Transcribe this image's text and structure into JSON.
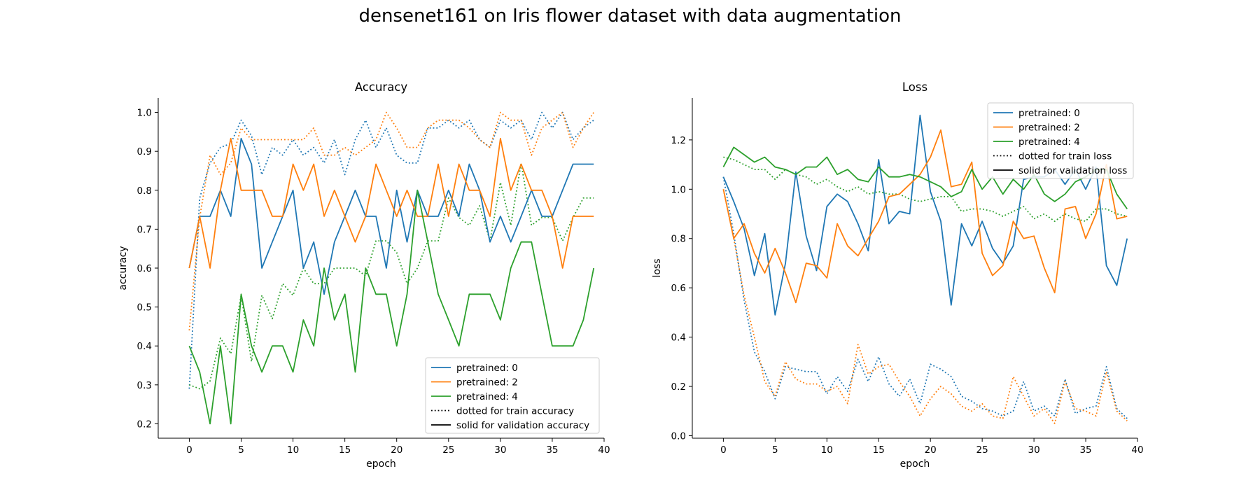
{
  "figure": {
    "title": "densenet161 on Iris flower dataset with data augmentation"
  },
  "colors": {
    "pretrained_0": "#1f77b4",
    "pretrained_2": "#ff7f0e",
    "pretrained_4": "#2ca02c",
    "axis": "#000000"
  },
  "chart_data": [
    {
      "type": "line",
      "title": "Accuracy",
      "xlabel": "epoch",
      "ylabel": "accuracy",
      "xlim": [
        -3,
        40
      ],
      "ylim": [
        0.163,
        1.037
      ],
      "xticks": [
        0,
        5,
        10,
        15,
        20,
        25,
        30,
        35,
        40
      ],
      "yticks": [
        0.2,
        0.3,
        0.4,
        0.5,
        0.6,
        0.7,
        0.8,
        0.9,
        1.0
      ],
      "ytick_labels": [
        "0.2",
        "0.3",
        "0.4",
        "0.5",
        "0.6",
        "0.7",
        "0.8",
        "0.9",
        "1.0"
      ],
      "legend_position": "lower-right",
      "legend": [
        {
          "label": "pretrained: 0",
          "color": "#1f77b4",
          "style": "solid"
        },
        {
          "label": "pretrained: 2",
          "color": "#ff7f0e",
          "style": "solid"
        },
        {
          "label": "pretrained: 4",
          "color": "#2ca02c",
          "style": "solid"
        },
        {
          "label": "dotted for train accuracy",
          "color": "#000000",
          "style": "dotted"
        },
        {
          "label": "solid for validation accuracy",
          "color": "#000000",
          "style": "solid"
        }
      ],
      "series": [
        {
          "pretrained": 0,
          "kind": "train",
          "color": "#1f77b4",
          "style": "dotted",
          "values": [
            0.29,
            0.78,
            0.87,
            0.91,
            0.92,
            0.98,
            0.94,
            0.84,
            0.91,
            0.89,
            0.93,
            0.89,
            0.91,
            0.87,
            0.93,
            0.84,
            0.93,
            0.98,
            0.91,
            0.96,
            0.89,
            0.87,
            0.87,
            0.96,
            0.96,
            0.98,
            0.96,
            0.98,
            0.93,
            0.91,
            0.98,
            0.96,
            0.98,
            0.93,
            1.0,
            0.96,
            1.0,
            0.93,
            0.96,
            0.98
          ]
        },
        {
          "pretrained": 2,
          "kind": "train",
          "color": "#ff7f0e",
          "style": "dotted",
          "values": [
            0.44,
            0.73,
            0.89,
            0.84,
            0.87,
            0.96,
            0.93,
            0.93,
            0.93,
            0.93,
            0.93,
            0.93,
            0.96,
            0.89,
            0.89,
            0.91,
            0.89,
            0.91,
            0.93,
            1.0,
            0.96,
            0.91,
            0.91,
            0.96,
            0.98,
            0.98,
            0.98,
            0.96,
            0.93,
            0.91,
            1.0,
            0.98,
            0.98,
            0.89,
            0.96,
            0.98,
            1.0,
            0.91,
            0.96,
            1.0
          ]
        },
        {
          "pretrained": 4,
          "kind": "train",
          "color": "#2ca02c",
          "style": "dotted",
          "values": [
            0.3,
            0.29,
            0.31,
            0.42,
            0.38,
            0.53,
            0.36,
            0.53,
            0.47,
            0.56,
            0.53,
            0.6,
            0.56,
            0.56,
            0.6,
            0.6,
            0.6,
            0.58,
            0.67,
            0.67,
            0.64,
            0.56,
            0.6,
            0.67,
            0.67,
            0.78,
            0.73,
            0.71,
            0.76,
            0.67,
            0.82,
            0.71,
            0.87,
            0.71,
            0.73,
            0.73,
            0.67,
            0.73,
            0.78,
            0.78
          ]
        },
        {
          "pretrained": 0,
          "kind": "validation",
          "color": "#1f77b4",
          "style": "solid",
          "values": [
            0.6,
            0.733,
            0.733,
            0.8,
            0.733,
            0.933,
            0.867,
            0.6,
            0.667,
            0.733,
            0.8,
            0.6,
            0.667,
            0.533,
            0.667,
            0.733,
            0.8,
            0.733,
            0.733,
            0.6,
            0.8,
            0.667,
            0.8,
            0.733,
            0.733,
            0.8,
            0.733,
            0.867,
            0.8,
            0.667,
            0.733,
            0.667,
            0.733,
            0.8,
            0.733,
            0.733,
            0.8,
            0.867,
            0.867,
            0.867
          ]
        },
        {
          "pretrained": 2,
          "kind": "validation",
          "color": "#ff7f0e",
          "style": "solid",
          "values": [
            0.6,
            0.733,
            0.6,
            0.8,
            0.933,
            0.8,
            0.8,
            0.8,
            0.733,
            0.733,
            0.867,
            0.8,
            0.867,
            0.733,
            0.8,
            0.733,
            0.667,
            0.733,
            0.867,
            0.8,
            0.733,
            0.8,
            0.733,
            0.733,
            0.867,
            0.733,
            0.867,
            0.8,
            0.8,
            0.733,
            0.933,
            0.8,
            0.867,
            0.8,
            0.8,
            0.733,
            0.6,
            0.733,
            0.733,
            0.733
          ]
        },
        {
          "pretrained": 4,
          "kind": "validation",
          "color": "#2ca02c",
          "style": "solid",
          "values": [
            0.4,
            0.333,
            0.2,
            0.4,
            0.2,
            0.533,
            0.4,
            0.333,
            0.4,
            0.4,
            0.333,
            0.467,
            0.4,
            0.6,
            0.467,
            0.533,
            0.333,
            0.6,
            0.533,
            0.533,
            0.4,
            0.533,
            0.8,
            0.667,
            0.533,
            0.467,
            0.4,
            0.533,
            0.533,
            0.533,
            0.467,
            0.6,
            0.667,
            0.667,
            0.533,
            0.4,
            0.4,
            0.4,
            0.467,
            0.6
          ]
        }
      ]
    },
    {
      "type": "line",
      "title": "Loss",
      "xlabel": "epoch",
      "ylabel": "loss",
      "xlim": [
        -3,
        40
      ],
      "ylim": [
        -0.01,
        1.37
      ],
      "xticks": [
        0,
        5,
        10,
        15,
        20,
        25,
        30,
        35,
        40
      ],
      "yticks": [
        0.0,
        0.2,
        0.4,
        0.6,
        0.8,
        1.0,
        1.2
      ],
      "ytick_labels": [
        "0.0",
        "0.2",
        "0.4",
        "0.6",
        "0.8",
        "1.0",
        "1.2"
      ],
      "legend_position": "upper-right",
      "legend": [
        {
          "label": "pretrained: 0",
          "color": "#1f77b4",
          "style": "solid"
        },
        {
          "label": "pretrained: 2",
          "color": "#ff7f0e",
          "style": "solid"
        },
        {
          "label": "pretrained: 4",
          "color": "#2ca02c",
          "style": "solid"
        },
        {
          "label": "dotted for train loss",
          "color": "#000000",
          "style": "dotted"
        },
        {
          "label": "solid for validation loss",
          "color": "#000000",
          "style": "solid"
        }
      ],
      "series": [
        {
          "pretrained": 0,
          "kind": "train",
          "color": "#1f77b4",
          "style": "dotted",
          "values": [
            1.05,
            0.82,
            0.55,
            0.34,
            0.26,
            0.15,
            0.28,
            0.27,
            0.26,
            0.26,
            0.17,
            0.24,
            0.18,
            0.31,
            0.22,
            0.32,
            0.21,
            0.16,
            0.23,
            0.13,
            0.29,
            0.27,
            0.24,
            0.16,
            0.14,
            0.11,
            0.1,
            0.08,
            0.1,
            0.22,
            0.1,
            0.12,
            0.08,
            0.23,
            0.09,
            0.11,
            0.12,
            0.28,
            0.11,
            0.07
          ]
        },
        {
          "pretrained": 2,
          "kind": "train",
          "color": "#ff7f0e",
          "style": "dotted",
          "values": [
            1.0,
            0.8,
            0.57,
            0.4,
            0.22,
            0.16,
            0.3,
            0.23,
            0.21,
            0.21,
            0.18,
            0.2,
            0.13,
            0.37,
            0.25,
            0.28,
            0.29,
            0.22,
            0.16,
            0.08,
            0.15,
            0.2,
            0.17,
            0.12,
            0.1,
            0.13,
            0.08,
            0.07,
            0.24,
            0.16,
            0.08,
            0.11,
            0.05,
            0.22,
            0.11,
            0.1,
            0.08,
            0.26,
            0.1,
            0.06
          ]
        },
        {
          "pretrained": 4,
          "kind": "train",
          "color": "#2ca02c",
          "style": "dotted",
          "values": [
            1.13,
            1.12,
            1.1,
            1.08,
            1.08,
            1.04,
            1.08,
            1.06,
            1.05,
            1.02,
            1.04,
            1.01,
            0.99,
            1.01,
            0.98,
            0.99,
            0.98,
            0.98,
            0.96,
            0.95,
            0.96,
            0.97,
            0.97,
            0.91,
            0.92,
            0.92,
            0.91,
            0.89,
            0.91,
            0.93,
            0.88,
            0.9,
            0.87,
            0.9,
            0.88,
            0.87,
            0.92,
            0.92,
            0.9,
            0.89
          ]
        },
        {
          "pretrained": 0,
          "kind": "validation",
          "color": "#1f77b4",
          "style": "solid",
          "values": [
            1.05,
            0.95,
            0.84,
            0.65,
            0.82,
            0.49,
            0.7,
            1.07,
            0.81,
            0.67,
            0.93,
            0.98,
            0.95,
            0.86,
            0.75,
            1.12,
            0.86,
            0.91,
            0.9,
            1.3,
            0.99,
            0.87,
            0.53,
            0.86,
            0.77,
            0.87,
            0.76,
            0.7,
            0.77,
            1.04,
            1.05,
            1.05,
            1.08,
            1.02,
            1.08,
            1.0,
            1.09,
            0.69,
            0.61,
            0.8
          ]
        },
        {
          "pretrained": 2,
          "kind": "validation",
          "color": "#ff7f0e",
          "style": "solid",
          "values": [
            1.0,
            0.8,
            0.86,
            0.74,
            0.66,
            0.76,
            0.66,
            0.54,
            0.7,
            0.69,
            0.64,
            0.86,
            0.77,
            0.73,
            0.8,
            0.87,
            0.97,
            0.98,
            1.02,
            1.06,
            1.13,
            1.24,
            1.01,
            1.02,
            1.11,
            0.74,
            0.65,
            0.69,
            0.87,
            0.8,
            0.81,
            0.68,
            0.58,
            0.92,
            0.93,
            0.8,
            0.9,
            1.1,
            0.88,
            0.89
          ]
        },
        {
          "pretrained": 4,
          "kind": "validation",
          "color": "#2ca02c",
          "style": "solid",
          "values": [
            1.09,
            1.17,
            1.14,
            1.11,
            1.13,
            1.09,
            1.08,
            1.06,
            1.09,
            1.09,
            1.13,
            1.06,
            1.08,
            1.04,
            1.03,
            1.09,
            1.05,
            1.05,
            1.06,
            1.05,
            1.03,
            1.01,
            0.97,
            0.99,
            1.08,
            1.0,
            1.05,
            0.98,
            1.04,
            1.0,
            1.06,
            0.98,
            0.95,
            0.98,
            1.03,
            1.05,
            1.08,
            1.08,
            0.98,
            0.92
          ]
        }
      ]
    }
  ]
}
